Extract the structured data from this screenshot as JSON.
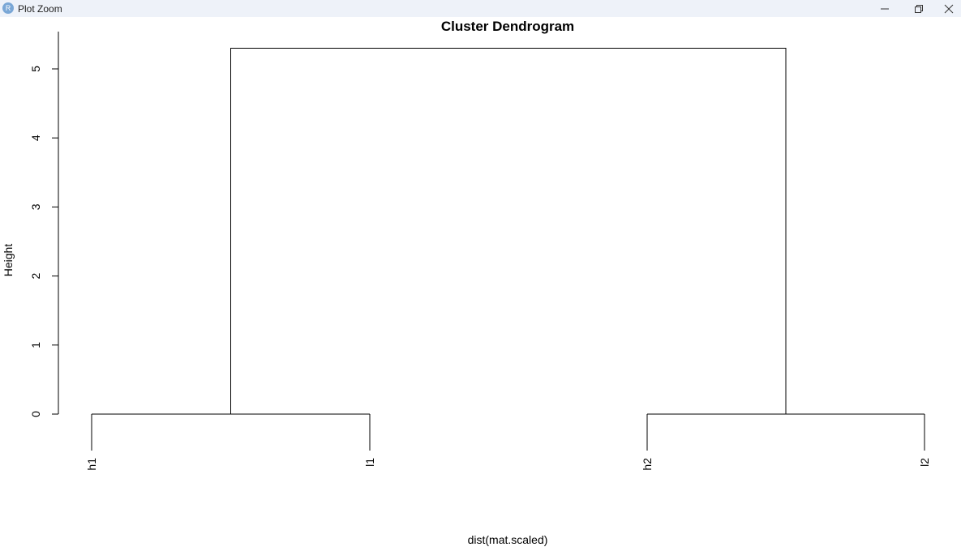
{
  "window": {
    "title": "Plot Zoom",
    "app_icon_letter": "R"
  },
  "chart_data": {
    "type": "dendrogram",
    "title": "Cluster Dendrogram",
    "xlabel": "dist(mat.scaled)",
    "ylabel": "Height",
    "ylim": [
      0,
      5
    ],
    "yticks": [
      0,
      1,
      2,
      3,
      4,
      5
    ],
    "leaves": [
      "h1",
      "l1",
      "h2",
      "l2"
    ],
    "merges": [
      {
        "left": "h1",
        "right": "l1",
        "height": 0.0
      },
      {
        "left": "h2",
        "right": "l2",
        "height": 0.0
      },
      {
        "left": "h1+l1",
        "right": "h2+l2",
        "height": 5.3
      }
    ],
    "grid": false
  }
}
